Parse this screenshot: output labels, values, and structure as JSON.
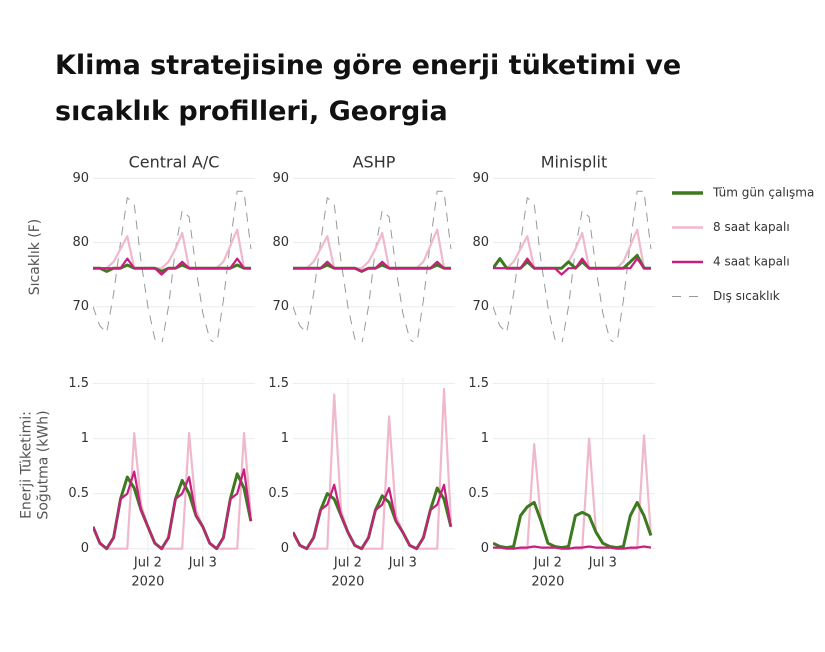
{
  "title": [
    "Klima stratejisine göre enerji tüketimi ve",
    "sıcaklık profilleri, Georgia"
  ],
  "chart_data": [
    {
      "type": "line",
      "title": "Central A/C",
      "ylabel": "Sıcaklık (F)",
      "ylim": [
        64.5,
        91
      ],
      "yticks": [
        70,
        80,
        90
      ],
      "xlim": [
        1.0,
        3.95
      ],
      "x": [
        1.0,
        1.125,
        1.25,
        1.375,
        1.5,
        1.625,
        1.75,
        1.875,
        2.0,
        2.125,
        2.25,
        2.375,
        2.5,
        2.625,
        2.75,
        2.875,
        3.0,
        3.125,
        3.25,
        3.375,
        3.5,
        3.625,
        3.75,
        3.875
      ],
      "series": [
        {
          "name": "Tüm gün çalışma",
          "color": "#3d7a1f",
          "values": [
            76,
            76,
            75.5,
            76,
            76,
            76.5,
            76,
            76,
            76,
            76,
            75.5,
            76,
            76,
            76.5,
            76,
            76,
            76,
            76,
            76,
            76,
            76,
            76.5,
            76,
            76
          ]
        },
        {
          "name": "8 saat kapalı",
          "color": "#f0b8cc",
          "values": [
            76,
            76,
            76,
            77,
            79,
            81,
            76,
            76,
            76,
            76,
            76,
            77,
            79,
            81.5,
            76,
            76,
            76,
            76,
            76,
            77,
            79.5,
            82,
            76,
            76
          ]
        },
        {
          "name": "4 saat kapalı",
          "color": "#c71f7e",
          "values": [
            76,
            76,
            76,
            76,
            76,
            77.5,
            76,
            76,
            76,
            76,
            75,
            76,
            76,
            77,
            76,
            76,
            76,
            76,
            76,
            76,
            76,
            77.5,
            76,
            76
          ]
        },
        {
          "name": "Dış sıcaklık",
          "color": "#999999",
          "dash": true,
          "values": [
            70,
            67,
            66,
            72,
            80,
            87,
            86,
            77,
            70,
            65,
            64,
            70,
            79,
            85,
            84,
            76,
            69,
            65,
            64,
            71,
            80,
            88,
            88,
            79
          ]
        }
      ]
    },
    {
      "type": "line",
      "title": "ASHP",
      "ylim": [
        64.5,
        91
      ],
      "yticks": [
        70,
        80,
        90
      ],
      "xlim": [
        1.0,
        3.95
      ],
      "x": [
        1.0,
        1.125,
        1.25,
        1.375,
        1.5,
        1.625,
        1.75,
        1.875,
        2.0,
        2.125,
        2.25,
        2.375,
        2.5,
        2.625,
        2.75,
        2.875,
        3.0,
        3.125,
        3.25,
        3.375,
        3.5,
        3.625,
        3.75,
        3.875
      ],
      "series": [
        {
          "name": "Tüm gün çalışma",
          "color": "#3d7a1f",
          "values": [
            76,
            76,
            76,
            76,
            76,
            76.5,
            76,
            76,
            76,
            76,
            75.5,
            76,
            76,
            76.5,
            76,
            76,
            76,
            76,
            76,
            76,
            76,
            76.5,
            76,
            76
          ]
        },
        {
          "name": "8 saat kapalı",
          "color": "#f0b8cc",
          "values": [
            76,
            76,
            76,
            77,
            79,
            81,
            76,
            76,
            76,
            76,
            76,
            77,
            79,
            81.5,
            76,
            76,
            76,
            76,
            76,
            77,
            79.5,
            82,
            76,
            76
          ]
        },
        {
          "name": "4 saat kapalı",
          "color": "#c71f7e",
          "values": [
            76,
            76,
            76,
            76,
            76,
            77,
            76,
            76,
            76,
            76,
            75.5,
            76,
            76,
            77,
            76,
            76,
            76,
            76,
            76,
            76,
            76,
            77,
            76,
            76
          ]
        },
        {
          "name": "Dış sıcaklık",
          "color": "#999999",
          "dash": true,
          "values": [
            70,
            67,
            66,
            72,
            80,
            87,
            86,
            77,
            70,
            65,
            64,
            70,
            79,
            85,
            84,
            76,
            69,
            65,
            64,
            71,
            80,
            88,
            88,
            79
          ]
        }
      ]
    },
    {
      "type": "line",
      "title": "Minisplit",
      "ylim": [
        64.5,
        91
      ],
      "yticks": [
        70,
        80,
        90
      ],
      "xlim": [
        1.0,
        3.95
      ],
      "x": [
        1.0,
        1.125,
        1.25,
        1.375,
        1.5,
        1.625,
        1.75,
        1.875,
        2.0,
        2.125,
        2.25,
        2.375,
        2.5,
        2.625,
        2.75,
        2.875,
        3.0,
        3.125,
        3.25,
        3.375,
        3.5,
        3.625,
        3.75,
        3.875
      ],
      "series": [
        {
          "name": "Tüm gün çalışma",
          "color": "#3d7a1f",
          "values": [
            76,
            77.5,
            76,
            76,
            76,
            77,
            76,
            76,
            76,
            76,
            76,
            77,
            76,
            77,
            76,
            76,
            76,
            76,
            76,
            76,
            77,
            78,
            76,
            76
          ]
        },
        {
          "name": "8 saat kapalı",
          "color": "#f0b8cc",
          "values": [
            76,
            76,
            76,
            77,
            79,
            81,
            76,
            76,
            76,
            76,
            76,
            77,
            79,
            81.5,
            76,
            76,
            76,
            76,
            76,
            77,
            79.5,
            82,
            76,
            76
          ]
        },
        {
          "name": "4 saat kapalı",
          "color": "#c71f7e",
          "values": [
            76,
            76,
            76,
            76,
            76,
            77.5,
            76,
            76,
            76,
            76,
            75,
            76,
            76,
            77.5,
            76,
            76,
            76,
            76,
            76,
            76,
            76,
            77.5,
            76,
            76
          ]
        },
        {
          "name": "Dış sıcaklık",
          "color": "#999999",
          "dash": true,
          "values": [
            70,
            67,
            66,
            72,
            80,
            87,
            86,
            77,
            70,
            65,
            64,
            70,
            79,
            85,
            84,
            76,
            69,
            65,
            64,
            71,
            80,
            88,
            88,
            79
          ]
        }
      ]
    },
    {
      "type": "line",
      "ylabel": [
        "Enerji Tüketimi:",
        "Soğutma (kWh)"
      ],
      "ylim": [
        -0.03,
        1.55
      ],
      "yticks": [
        0,
        0.5,
        1,
        1.5
      ],
      "xlim": [
        1.0,
        3.95
      ],
      "xticks": [
        {
          "value": 2,
          "label": "Jul 2"
        },
        {
          "value": 3,
          "label": "Jul 3"
        }
      ],
      "xyear": "2020",
      "x": [
        1.0,
        1.125,
        1.25,
        1.375,
        1.5,
        1.625,
        1.75,
        1.875,
        2.0,
        2.125,
        2.25,
        2.375,
        2.5,
        2.625,
        2.75,
        2.875,
        3.0,
        3.125,
        3.25,
        3.375,
        3.5,
        3.625,
        3.75,
        3.875
      ],
      "series": [
        {
          "name": "Tüm gün çalışma",
          "color": "#3d7a1f",
          "values": [
            0.2,
            0.05,
            0,
            0.1,
            0.45,
            0.65,
            0.55,
            0.35,
            0.2,
            0.05,
            0,
            0.1,
            0.45,
            0.62,
            0.5,
            0.3,
            0.2,
            0.05,
            0,
            0.1,
            0.45,
            0.68,
            0.55,
            0.25
          ]
        },
        {
          "name": "8 saat kapalı",
          "color": "#f0b8cc",
          "values": [
            0.2,
            0.05,
            0,
            0,
            0,
            0,
            1.05,
            0.4,
            0.2,
            0.05,
            0,
            0,
            0,
            0,
            1.05,
            0.35,
            0.2,
            0.05,
            0,
            0,
            0,
            0,
            1.05,
            0.3
          ]
        },
        {
          "name": "4 saat kapalı",
          "color": "#c71f7e",
          "values": [
            0.2,
            0.05,
            0,
            0.1,
            0.45,
            0.5,
            0.7,
            0.35,
            0.2,
            0.05,
            0,
            0.1,
            0.45,
            0.5,
            0.65,
            0.3,
            0.2,
            0.05,
            0,
            0.1,
            0.45,
            0.5,
            0.72,
            0.25
          ]
        }
      ]
    },
    {
      "type": "line",
      "ylim": [
        -0.03,
        1.55
      ],
      "yticks": [
        0,
        0.5,
        1,
        1.5
      ],
      "xlim": [
        1.0,
        3.95
      ],
      "xticks": [
        {
          "value": 2,
          "label": "Jul 2"
        },
        {
          "value": 3,
          "label": "Jul 3"
        }
      ],
      "xyear": "2020",
      "x": [
        1.0,
        1.125,
        1.25,
        1.375,
        1.5,
        1.625,
        1.75,
        1.875,
        2.0,
        2.125,
        2.25,
        2.375,
        2.5,
        2.625,
        2.75,
        2.875,
        3.0,
        3.125,
        3.25,
        3.375,
        3.5,
        3.625,
        3.75,
        3.875
      ],
      "series": [
        {
          "name": "Tüm gün çalışma",
          "color": "#3d7a1f",
          "values": [
            0.15,
            0.03,
            0,
            0.1,
            0.35,
            0.5,
            0.45,
            0.3,
            0.15,
            0.03,
            0,
            0.1,
            0.35,
            0.48,
            0.42,
            0.25,
            0.15,
            0.03,
            0,
            0.1,
            0.35,
            0.55,
            0.45,
            0.2
          ]
        },
        {
          "name": "8 saat kapalı",
          "color": "#f0b8cc",
          "values": [
            0.15,
            0.03,
            0,
            0,
            0,
            0,
            1.4,
            0.35,
            0.15,
            0.03,
            0,
            0,
            0,
            0,
            1.2,
            0.3,
            0.15,
            0.03,
            0,
            0,
            0,
            0,
            1.45,
            0.25
          ]
        },
        {
          "name": "4 saat kapalı",
          "color": "#c71f7e",
          "values": [
            0.15,
            0.03,
            0,
            0.1,
            0.35,
            0.4,
            0.58,
            0.3,
            0.15,
            0.03,
            0,
            0.1,
            0.35,
            0.4,
            0.55,
            0.25,
            0.15,
            0.03,
            0,
            0.1,
            0.35,
            0.4,
            0.58,
            0.2
          ]
        }
      ]
    },
    {
      "type": "line",
      "ylim": [
        -0.03,
        1.55
      ],
      "yticks": [
        0,
        0.5,
        1,
        1.5
      ],
      "xlim": [
        1.0,
        3.95
      ],
      "xticks": [
        {
          "value": 2,
          "label": "Jul 2"
        },
        {
          "value": 3,
          "label": "Jul 3"
        }
      ],
      "xyear": "2020",
      "x": [
        1.0,
        1.125,
        1.25,
        1.375,
        1.5,
        1.625,
        1.75,
        1.875,
        2.0,
        2.125,
        2.25,
        2.375,
        2.5,
        2.625,
        2.75,
        2.875,
        3.0,
        3.125,
        3.25,
        3.375,
        3.5,
        3.625,
        3.75,
        3.875
      ],
      "series": [
        {
          "name": "Tüm gün çalışma",
          "color": "#3d7a1f",
          "values": [
            0.05,
            0.02,
            0.01,
            0.02,
            0.3,
            0.38,
            0.42,
            0.25,
            0.05,
            0.02,
            0.01,
            0.02,
            0.3,
            0.33,
            0.3,
            0.15,
            0.05,
            0.02,
            0.01,
            0.02,
            0.3,
            0.42,
            0.3,
            0.12
          ]
        },
        {
          "name": "8 saat kapalı",
          "color": "#f0b8cc",
          "values": [
            0.05,
            0.02,
            0.01,
            0,
            0,
            0,
            0.95,
            0.25,
            0.05,
            0.02,
            0.01,
            0,
            0,
            0,
            1.0,
            0.15,
            0.05,
            0.02,
            0.01,
            0,
            0,
            0,
            1.03,
            0.12
          ]
        },
        {
          "name": "4 saat kapalı",
          "color": "#c71f7e",
          "values": [
            0.01,
            0.01,
            0,
            0,
            0.01,
            0.01,
            0.02,
            0.01,
            0.01,
            0.01,
            0,
            0,
            0.01,
            0.01,
            0.02,
            0.01,
            0.01,
            0.01,
            0,
            0,
            0.01,
            0.01,
            0.02,
            0.01
          ]
        }
      ]
    }
  ]
}
